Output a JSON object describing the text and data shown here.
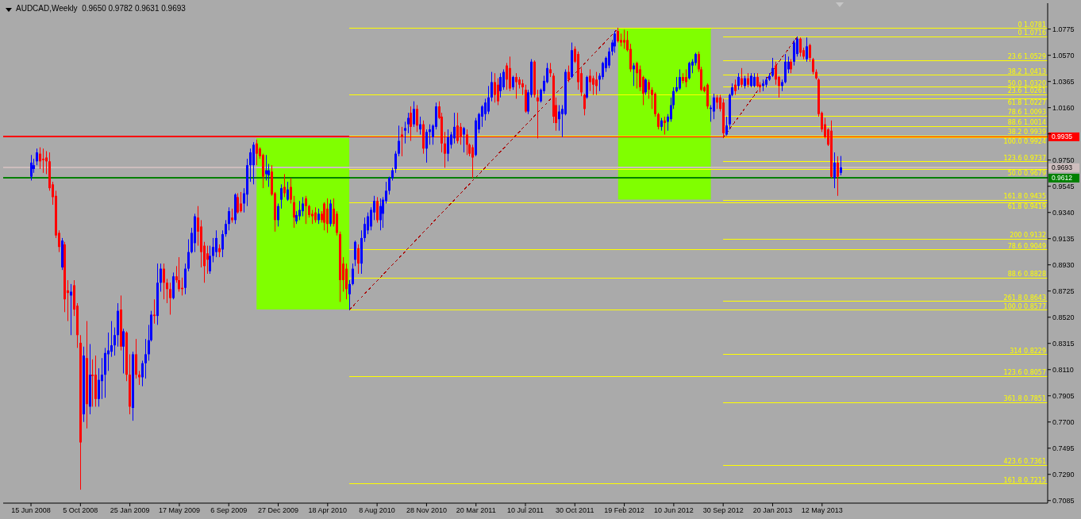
{
  "chart_data": {
    "type": "candlestick",
    "title": "AUDCAD,Weekly  0.9650 0.9782 0.9631 0.9693",
    "x": [
      "2008-06-15",
      "2008-06-22",
      "2008-06-29",
      "2008-07-06",
      "2008-07-13",
      "2008-07-20",
      "2008-07-27",
      "2008-08-03",
      "2008-08-10",
      "2008-08-17",
      "2008-08-24",
      "2008-08-31",
      "2008-09-07",
      "2008-09-14",
      "2008-09-21",
      "2008-09-28",
      "2008-10-05",
      "2008-10-12",
      "2008-10-19",
      "2008-10-26",
      "2008-11-02",
      "2008-11-09",
      "2008-11-16",
      "2008-11-23",
      "2008-11-30",
      "2008-12-07",
      "2008-12-14",
      "2008-12-21",
      "2008-12-28",
      "2009-01-04",
      "2009-01-11",
      "2009-01-18",
      "2009-01-25",
      "2009-02-01",
      "2009-02-08",
      "2009-02-15",
      "2009-02-22",
      "2009-03-01",
      "2009-03-08",
      "2009-03-15",
      "2009-03-22",
      "2009-03-29",
      "2009-04-05",
      "2009-04-12",
      "2009-04-19",
      "2009-04-26",
      "2009-05-03",
      "2009-05-10",
      "2009-05-17",
      "2009-05-24",
      "2009-05-31",
      "2009-06-07",
      "2009-06-14",
      "2009-06-21",
      "2009-06-28",
      "2009-07-05",
      "2009-07-12",
      "2009-07-19",
      "2009-07-26",
      "2009-08-02",
      "2009-08-09",
      "2009-08-16",
      "2009-08-23",
      "2009-08-30",
      "2009-09-06",
      "2009-09-13",
      "2009-09-20",
      "2009-09-27",
      "2009-10-04",
      "2009-10-11",
      "2009-10-18",
      "2009-10-25",
      "2009-11-01",
      "2009-11-08",
      "2009-11-15",
      "2009-11-22",
      "2009-11-29",
      "2009-12-06",
      "2009-12-13",
      "2009-12-20",
      "2009-12-27",
      "2010-01-03",
      "2010-01-10",
      "2010-01-17",
      "2010-01-24",
      "2010-01-31",
      "2010-02-07",
      "2010-02-14",
      "2010-02-21",
      "2010-02-28",
      "2010-03-07",
      "2010-03-14",
      "2010-03-21",
      "2010-03-28",
      "2010-04-04",
      "2010-04-11",
      "2010-04-18",
      "2010-04-25",
      "2010-05-02",
      "2010-05-09",
      "2010-05-16",
      "2010-05-23",
      "2010-05-30",
      "2010-06-06",
      "2010-06-13",
      "2010-06-20",
      "2010-06-27",
      "2010-07-04",
      "2010-07-11",
      "2010-07-18",
      "2010-07-25",
      "2010-08-01",
      "2010-08-08",
      "2010-08-15",
      "2010-08-22",
      "2010-08-29",
      "2010-09-05",
      "2010-09-12",
      "2010-09-19",
      "2010-09-26",
      "2010-10-03",
      "2010-10-10",
      "2010-10-17",
      "2010-10-24",
      "2010-10-31",
      "2010-11-07",
      "2010-11-14",
      "2010-11-21",
      "2010-11-28",
      "2010-12-05",
      "2010-12-12",
      "2010-12-19",
      "2010-12-26",
      "2011-01-02",
      "2011-01-09",
      "2011-01-16",
      "2011-01-23",
      "2011-01-30",
      "2011-02-06",
      "2011-02-13",
      "2011-02-20",
      "2011-02-27",
      "2011-03-06",
      "2011-03-13",
      "2011-03-20",
      "2011-03-27",
      "2011-04-03",
      "2011-04-10",
      "2011-04-17",
      "2011-04-24",
      "2011-05-01",
      "2011-05-08",
      "2011-05-15",
      "2011-05-22",
      "2011-05-29",
      "2011-06-05",
      "2011-06-12",
      "2011-06-19",
      "2011-06-26",
      "2011-07-03",
      "2011-07-10",
      "2011-07-17",
      "2011-07-24",
      "2011-07-31",
      "2011-08-07",
      "2011-08-14",
      "2011-08-21",
      "2011-08-28",
      "2011-09-04",
      "2011-09-11",
      "2011-09-18",
      "2011-09-25",
      "2011-10-02",
      "2011-10-09",
      "2011-10-16",
      "2011-10-23",
      "2011-10-30",
      "2011-11-06",
      "2011-11-13",
      "2011-11-20",
      "2011-11-27",
      "2011-12-04",
      "2011-12-11",
      "2011-12-18",
      "2011-12-25",
      "2012-01-01",
      "2012-01-08",
      "2012-01-15",
      "2012-01-22",
      "2012-01-29",
      "2012-02-05",
      "2012-02-12",
      "2012-02-19",
      "2012-02-26",
      "2012-03-04",
      "2012-03-11",
      "2012-03-18",
      "2012-03-25",
      "2012-04-01",
      "2012-04-08",
      "2012-04-15",
      "2012-04-22",
      "2012-04-29",
      "2012-05-06",
      "2012-05-13",
      "2012-05-20",
      "2012-05-27",
      "2012-06-03",
      "2012-06-10",
      "2012-06-17",
      "2012-06-24",
      "2012-07-01",
      "2012-07-08",
      "2012-07-15",
      "2012-07-22",
      "2012-07-29",
      "2012-08-05",
      "2012-08-12",
      "2012-08-19",
      "2012-08-26",
      "2012-09-02",
      "2012-09-09",
      "2012-09-16",
      "2012-09-23",
      "2012-09-30",
      "2012-10-07",
      "2012-10-14",
      "2012-10-21",
      "2012-10-28",
      "2012-11-04",
      "2012-11-11",
      "2012-11-18",
      "2012-11-25",
      "2012-12-02",
      "2012-12-09",
      "2012-12-16",
      "2012-12-23",
      "2012-12-30",
      "2013-01-06",
      "2013-01-13",
      "2013-01-20",
      "2013-01-27",
      "2013-02-03",
      "2013-02-10",
      "2013-02-17",
      "2013-02-24",
      "2013-03-03",
      "2013-03-10",
      "2013-03-17",
      "2013-03-24",
      "2013-03-31",
      "2013-04-07",
      "2013-04-14",
      "2013-04-21",
      "2013-04-28",
      "2013-05-05",
      "2013-05-12",
      "2013-05-19",
      "2013-05-26",
      "2013-06-02",
      "2013-06-09",
      "2013-06-16",
      "2013-06-23"
    ],
    "ohlc": [
      [
        0.962,
        0.979,
        0.959,
        0.973
      ],
      [
        0.968,
        0.976,
        0.965,
        0.971
      ],
      [
        0.974,
        0.984,
        0.971,
        0.981
      ],
      [
        0.98,
        0.985,
        0.968,
        0.974
      ],
      [
        0.976,
        0.984,
        0.965,
        0.975
      ],
      [
        0.977,
        0.982,
        0.964,
        0.974
      ],
      [
        0.974,
        0.981,
        0.951,
        0.953
      ],
      [
        0.956,
        0.958,
        0.94,
        0.946
      ],
      [
        0.947,
        0.951,
        0.914,
        0.916
      ],
      [
        0.918,
        0.92,
        0.903,
        0.907
      ],
      [
        0.891,
        0.914,
        0.889,
        0.912
      ],
      [
        0.909,
        0.911,
        0.856,
        0.866
      ],
      [
        0.873,
        0.881,
        0.849,
        0.871
      ],
      [
        0.869,
        0.878,
        0.838,
        0.872
      ],
      [
        0.877,
        0.881,
        0.853,
        0.858
      ],
      [
        0.861,
        0.863,
        0.828,
        0.838
      ],
      [
        0.832,
        0.838,
        0.717,
        0.754
      ],
      [
        0.776,
        0.829,
        0.77,
        0.822
      ],
      [
        0.82,
        0.849,
        0.765,
        0.784
      ],
      [
        0.782,
        0.831,
        0.776,
        0.807
      ],
      [
        0.807,
        0.819,
        0.782,
        0.806
      ],
      [
        0.807,
        0.822,
        0.782,
        0.788
      ],
      [
        0.788,
        0.812,
        0.782,
        0.803
      ],
      [
        0.802,
        0.82,
        0.788,
        0.807
      ],
      [
        0.807,
        0.828,
        0.789,
        0.824
      ],
      [
        0.823,
        0.84,
        0.81,
        0.826
      ],
      [
        0.825,
        0.849,
        0.821,
        0.83
      ],
      [
        0.83,
        0.844,
        0.822,
        0.838
      ],
      [
        0.838,
        0.863,
        0.829,
        0.857
      ],
      [
        0.858,
        0.869,
        0.826,
        0.829
      ],
      [
        0.829,
        0.843,
        0.808,
        0.841
      ],
      [
        0.84,
        0.841,
        0.802,
        0.807
      ],
      [
        0.807,
        0.823,
        0.776,
        0.782
      ],
      [
        0.781,
        0.825,
        0.771,
        0.823
      ],
      [
        0.823,
        0.835,
        0.804,
        0.807
      ],
      [
        0.807,
        0.81,
        0.799,
        0.805
      ],
      [
        0.805,
        0.818,
        0.798,
        0.816
      ],
      [
        0.816,
        0.835,
        0.804,
        0.823
      ],
      [
        0.823,
        0.846,
        0.818,
        0.834
      ],
      [
        0.834,
        0.857,
        0.833,
        0.854
      ],
      [
        0.854,
        0.866,
        0.847,
        0.853
      ],
      [
        0.853,
        0.894,
        0.846,
        0.879
      ],
      [
        0.879,
        0.894,
        0.872,
        0.89
      ],
      [
        0.89,
        0.894,
        0.866,
        0.879
      ],
      [
        0.879,
        0.882,
        0.863,
        0.874
      ],
      [
        0.874,
        0.879,
        0.854,
        0.867
      ],
      [
        0.867,
        0.887,
        0.866,
        0.884
      ],
      [
        0.884,
        0.892,
        0.879,
        0.881
      ],
      [
        0.881,
        0.899,
        0.872,
        0.874
      ],
      [
        0.875,
        0.883,
        0.869,
        0.874
      ],
      [
        0.875,
        0.894,
        0.87,
        0.89
      ],
      [
        0.89,
        0.913,
        0.888,
        0.903
      ],
      [
        0.903,
        0.922,
        0.902,
        0.918
      ],
      [
        0.91,
        0.933,
        0.903,
        0.931
      ],
      [
        0.93,
        0.939,
        0.908,
        0.919
      ],
      [
        0.923,
        0.928,
        0.891,
        0.903
      ],
      [
        0.908,
        0.911,
        0.879,
        0.892
      ],
      [
        0.902,
        0.908,
        0.886,
        0.897
      ],
      [
        0.888,
        0.908,
        0.886,
        0.9
      ],
      [
        0.9,
        0.914,
        0.895,
        0.907
      ],
      [
        0.903,
        0.92,
        0.899,
        0.914
      ],
      [
        0.906,
        0.909,
        0.899,
        0.903
      ],
      [
        0.905,
        0.92,
        0.899,
        0.917
      ],
      [
        0.917,
        0.928,
        0.915,
        0.925
      ],
      [
        0.925,
        0.938,
        0.92,
        0.935
      ],
      [
        0.93,
        0.937,
        0.926,
        0.928
      ],
      [
        0.928,
        0.949,
        0.925,
        0.948
      ],
      [
        0.946,
        0.949,
        0.933,
        0.934
      ],
      [
        0.941,
        0.95,
        0.934,
        0.935
      ],
      [
        0.941,
        0.953,
        0.934,
        0.949
      ],
      [
        0.948,
        0.976,
        0.939,
        0.971
      ],
      [
        0.971,
        0.984,
        0.958,
        0.981
      ],
      [
        0.971,
        0.989,
        0.956,
        0.987
      ],
      [
        0.988,
        0.991,
        0.971,
        0.98
      ],
      [
        0.984,
        0.985,
        0.976,
        0.978
      ],
      [
        0.979,
        0.98,
        0.953,
        0.962
      ],
      [
        0.964,
        0.979,
        0.959,
        0.967
      ],
      [
        0.963,
        0.972,
        0.954,
        0.967
      ],
      [
        0.966,
        0.971,
        0.947,
        0.948
      ],
      [
        0.949,
        0.95,
        0.919,
        0.928
      ],
      [
        0.928,
        0.941,
        0.923,
        0.939
      ],
      [
        0.944,
        0.956,
        0.937,
        0.953
      ],
      [
        0.954,
        0.964,
        0.946,
        0.949
      ],
      [
        0.944,
        0.958,
        0.943,
        0.952
      ],
      [
        0.954,
        0.961,
        0.941,
        0.944
      ],
      [
        0.942,
        0.947,
        0.922,
        0.93
      ],
      [
        0.927,
        0.935,
        0.925,
        0.932
      ],
      [
        0.931,
        0.943,
        0.928,
        0.936
      ],
      [
        0.935,
        0.946,
        0.931,
        0.941
      ],
      [
        0.945,
        0.947,
        0.925,
        0.939
      ],
      [
        0.939,
        0.94,
        0.93,
        0.932
      ],
      [
        0.933,
        0.936,
        0.925,
        0.931
      ],
      [
        0.934,
        0.938,
        0.926,
        0.928
      ],
      [
        0.928,
        0.937,
        0.925,
        0.933
      ],
      [
        0.933,
        0.935,
        0.926,
        0.928
      ],
      [
        0.941,
        0.942,
        0.92,
        0.926
      ],
      [
        0.937,
        0.945,
        0.918,
        0.925
      ],
      [
        0.925,
        0.944,
        0.923,
        0.941
      ],
      [
        0.937,
        0.945,
        0.923,
        0.925
      ],
      [
        0.933,
        0.935,
        0.916,
        0.918
      ],
      [
        0.917,
        0.919,
        0.864,
        0.881
      ],
      [
        0.894,
        0.899,
        0.872,
        0.881
      ],
      [
        0.89,
        0.894,
        0.866,
        0.874
      ],
      [
        0.87,
        0.881,
        0.8577,
        0.878
      ],
      [
        0.878,
        0.894,
        0.877,
        0.89
      ],
      [
        0.897,
        0.912,
        0.892,
        0.911
      ],
      [
        0.906,
        0.909,
        0.886,
        0.894
      ],
      [
        0.894,
        0.92,
        0.886,
        0.914
      ],
      [
        0.914,
        0.93,
        0.911,
        0.925
      ],
      [
        0.92,
        0.934,
        0.917,
        0.931
      ],
      [
        0.923,
        0.938,
        0.92,
        0.936
      ],
      [
        0.934,
        0.947,
        0.928,
        0.943
      ],
      [
        0.943,
        0.946,
        0.926,
        0.928
      ],
      [
        0.928,
        0.945,
        0.92,
        0.939
      ],
      [
        0.933,
        0.946,
        0.922,
        0.944
      ],
      [
        0.943,
        0.958,
        0.941,
        0.951
      ],
      [
        0.951,
        0.962,
        0.948,
        0.961
      ],
      [
        0.961,
        0.969,
        0.959,
        0.967
      ],
      [
        0.968,
        0.982,
        0.965,
        0.98
      ],
      [
        0.98,
        1.002,
        0.978,
        0.99
      ],
      [
        0.995,
        1.001,
        0.978,
        0.993
      ],
      [
        0.998,
        1.005,
        0.988,
        1.0
      ],
      [
        1.003,
        1.012,
        0.996,
        1.008
      ],
      [
        1.012,
        1.017,
        0.99,
        1.001
      ],
      [
        1.003,
        1.021,
        1.001,
        1.015
      ],
      [
        1.015,
        1.018,
        0.997,
        1.002
      ],
      [
        0.999,
        1.009,
        0.995,
        1.003
      ],
      [
        1.003,
        1.006,
        0.98,
        0.984
      ],
      [
        0.984,
        0.999,
        0.973,
        0.997
      ],
      [
        0.997,
        1.003,
        0.987,
        0.999
      ],
      [
        0.993,
        1.003,
        0.987,
        1.002
      ],
      [
        1.001,
        1.02,
        0.999,
        1.017
      ],
      [
        1.017,
        1.021,
        1.007,
        1.008
      ],
      [
        1.009,
        1.012,
        0.981,
        0.988
      ],
      [
        0.988,
        0.997,
        0.969,
        0.98
      ],
      [
        0.98,
        0.999,
        0.974,
        0.993
      ],
      [
        0.987,
        0.997,
        0.984,
        0.995
      ],
      [
        0.992,
        1.012,
        0.988,
        1.001
      ],
      [
        1.002,
        1.012,
        0.988,
        0.99
      ],
      [
        1.001,
        1.004,
        0.987,
        0.993
      ],
      [
        0.995,
        1.001,
        0.981,
        1.0
      ],
      [
        0.995,
        0.999,
        0.979,
        0.987
      ],
      [
        0.987,
        0.988,
        0.978,
        0.98
      ],
      [
        0.985,
        0.987,
        0.961,
        0.977
      ],
      [
        0.979,
        1.008,
        0.978,
        1.006
      ],
      [
        0.999,
        1.012,
        0.996,
        1.011
      ],
      [
        1.009,
        1.018,
        1.001,
        1.017
      ],
      [
        1.011,
        1.023,
        1.006,
        1.02
      ],
      [
        1.013,
        1.033,
        1.011,
        1.024
      ],
      [
        1.024,
        1.044,
        1.021,
        1.036
      ],
      [
        1.036,
        1.043,
        1.02,
        1.026
      ],
      [
        1.034,
        1.039,
        1.018,
        1.021
      ],
      [
        1.029,
        1.043,
        1.024,
        1.04
      ],
      [
        1.032,
        1.046,
        1.03,
        1.044
      ],
      [
        1.049,
        1.051,
        1.03,
        1.038
      ],
      [
        1.047,
        1.056,
        1.029,
        1.031
      ],
      [
        1.032,
        1.041,
        1.03,
        1.04
      ],
      [
        1.04,
        1.043,
        1.023,
        1.036
      ],
      [
        1.038,
        1.04,
        1.031,
        1.034
      ],
      [
        1.035,
        1.038,
        1.026,
        1.032
      ],
      [
        1.03,
        1.034,
        1.012,
        1.013
      ],
      [
        1.013,
        1.03,
        1.011,
        1.028
      ],
      [
        1.026,
        1.054,
        1.024,
        1.052
      ],
      [
        1.052,
        1.053,
        1.024,
        1.026
      ],
      [
        1.024,
        1.03,
        0.992,
        1.021
      ],
      [
        1.021,
        1.031,
        1.02,
        1.03
      ],
      [
        1.029,
        1.041,
        1.027,
        1.037
      ],
      [
        1.036,
        1.051,
        1.035,
        1.047
      ],
      [
        1.046,
        1.051,
        1.04,
        1.043
      ],
      [
        1.041,
        1.043,
        1.004,
        1.009
      ],
      [
        1.018,
        1.024,
        0.998,
        1.004
      ],
      [
        1.007,
        1.018,
        0.998,
        1.013
      ],
      [
        1.011,
        1.018,
        0.993,
        1.015
      ],
      [
        1.011,
        1.046,
        1.01,
        1.044
      ],
      [
        1.044,
        1.049,
        1.036,
        1.038
      ],
      [
        1.04,
        1.067,
        1.039,
        1.061
      ],
      [
        1.062,
        1.064,
        1.051,
        1.052
      ],
      [
        1.058,
        1.06,
        1.03,
        1.036
      ],
      [
        1.043,
        1.047,
        1.025,
        1.028
      ],
      [
        1.026,
        1.027,
        1.01,
        1.015
      ],
      [
        1.024,
        1.041,
        1.023,
        1.04
      ],
      [
        1.041,
        1.046,
        1.029,
        1.036
      ],
      [
        1.039,
        1.041,
        1.026,
        1.034
      ],
      [
        1.038,
        1.044,
        1.026,
        1.033
      ],
      [
        1.038,
        1.043,
        1.029,
        1.041
      ],
      [
        1.04,
        1.052,
        1.038,
        1.051
      ],
      [
        1.047,
        1.056,
        1.044,
        1.055
      ],
      [
        1.049,
        1.063,
        1.047,
        1.06
      ],
      [
        1.06,
        1.069,
        1.057,
        1.067
      ],
      [
        1.064,
        1.076,
        1.059,
        1.074
      ],
      [
        1.076,
        1.0781,
        1.067,
        1.068
      ],
      [
        1.069,
        1.074,
        1.064,
        1.067
      ],
      [
        1.069,
        1.077,
        1.062,
        1.067
      ],
      [
        1.069,
        1.076,
        1.06,
        1.061
      ],
      [
        1.062,
        1.066,
        1.044,
        1.046
      ],
      [
        1.046,
        1.051,
        1.033,
        1.049
      ],
      [
        1.051,
        1.052,
        1.031,
        1.043
      ],
      [
        1.046,
        1.049,
        1.029,
        1.032
      ],
      [
        1.04,
        1.041,
        1.018,
        1.027
      ],
      [
        1.028,
        1.039,
        1.026,
        1.038
      ],
      [
        1.036,
        1.038,
        1.023,
        1.03
      ],
      [
        1.03,
        1.032,
        1.015,
        1.026
      ],
      [
        1.027,
        1.028,
        1.009,
        1.011
      ],
      [
        1.011,
        1.012,
        0.999,
        1.001
      ],
      [
        1.001,
        1.008,
        0.998,
        1.006
      ],
      [
        1.006,
        1.009,
        0.995,
        1.004
      ],
      [
        1.005,
        1.011,
        0.998,
        1.009
      ],
      [
        1.007,
        1.024,
        1.005,
        1.018
      ],
      [
        1.018,
        1.032,
        1.015,
        1.029
      ],
      [
        1.029,
        1.04,
        1.028,
        1.032
      ],
      [
        1.031,
        1.046,
        1.03,
        1.04
      ],
      [
        1.04,
        1.043,
        1.035,
        1.037
      ],
      [
        1.04,
        1.046,
        1.032,
        1.036
      ],
      [
        1.039,
        1.052,
        1.038,
        1.051
      ],
      [
        1.049,
        1.054,
        1.043,
        1.052
      ],
      [
        1.051,
        1.059,
        1.049,
        1.058
      ],
      [
        1.058,
        1.06,
        1.044,
        1.046
      ],
      [
        1.046,
        1.048,
        1.029,
        1.03
      ],
      [
        1.032,
        1.033,
        1.028,
        1.029
      ],
      [
        1.034,
        1.035,
        1.015,
        1.017
      ],
      [
        1.015,
        1.018,
        1.005,
        1.016
      ],
      [
        1.013,
        1.027,
        1.007,
        1.024
      ],
      [
        1.024,
        1.026,
        1.015,
        1.02
      ],
      [
        1.024,
        1.026,
        1.013,
        1.015
      ],
      [
        1.02,
        1.023,
        0.9924,
        0.996
      ],
      [
        0.995,
        1.009,
        0.994,
        1.002
      ],
      [
        1.003,
        1.027,
        0.999,
        1.026
      ],
      [
        1.026,
        1.035,
        1.025,
        1.032
      ],
      [
        1.034,
        1.038,
        1.026,
        1.029
      ],
      [
        1.033,
        1.043,
        1.03,
        1.04
      ],
      [
        1.039,
        1.047,
        1.032,
        1.034
      ],
      [
        1.033,
        1.041,
        1.031,
        1.039
      ],
      [
        1.039,
        1.043,
        1.032,
        1.034
      ],
      [
        1.033,
        1.043,
        1.032,
        1.041
      ],
      [
        1.033,
        1.043,
        1.032,
        1.04
      ],
      [
        1.04,
        1.043,
        1.032,
        1.033
      ],
      [
        1.034,
        1.036,
        1.028,
        1.032
      ],
      [
        1.033,
        1.038,
        1.029,
        1.035
      ],
      [
        1.034,
        1.04,
        1.032,
        1.038
      ],
      [
        1.038,
        1.043,
        1.037,
        1.041
      ],
      [
        1.041,
        1.055,
        1.04,
        1.047
      ],
      [
        1.049,
        1.052,
        1.034,
        1.038
      ],
      [
        1.04,
        1.041,
        1.024,
        1.033
      ],
      [
        1.033,
        1.038,
        1.029,
        1.036
      ],
      [
        1.036,
        1.058,
        1.035,
        1.052
      ],
      [
        1.046,
        1.056,
        1.043,
        1.052
      ],
      [
        1.052,
        1.054,
        1.043,
        1.046
      ],
      [
        1.052,
        1.069,
        1.049,
        1.067
      ],
      [
        1.058,
        1.0716,
        1.056,
        1.07
      ],
      [
        1.07,
        1.071,
        1.056,
        1.059
      ],
      [
        1.061,
        1.063,
        1.054,
        1.056
      ],
      [
        1.054,
        1.071,
        1.052,
        1.064
      ],
      [
        1.065,
        1.066,
        1.052,
        1.055
      ],
      [
        1.054,
        1.055,
        1.042,
        1.044
      ],
      [
        1.044,
        1.046,
        1.038,
        1.039
      ],
      [
        1.038,
        1.039,
        1.009,
        1.011
      ],
      [
        1.012,
        1.013,
        0.997,
        0.999
      ],
      [
        1.003,
        1.008,
        0.992,
        0.993
      ],
      [
        0.999,
        1.0,
        0.986,
        0.987
      ],
      [
        0.998,
        1.006,
        0.961,
        0.962
      ],
      [
        0.961,
        0.981,
        0.953,
        0.973
      ],
      [
        0.973,
        0.978,
        0.947,
        0.962
      ],
      [
        0.965,
        0.9782,
        0.9631,
        0.9693
      ]
    ],
    "colors": [
      "#0000ff",
      "#0000ff",
      "#0000ff",
      "#ff0000",
      "#ff0000",
      "#ff0000",
      "#ff0000",
      "#ff0000",
      "#ff0000",
      "#ff0000",
      "#0000ff",
      "#ff0000",
      "#ff0000",
      "#0000ff",
      "#ff0000",
      "#ff0000",
      "#ff0000",
      "#0000ff",
      "#ff0000",
      "#0000ff",
      "#ff0000",
      "#ff0000",
      "#0000ff",
      "#0000ff",
      "#0000ff",
      "#0000ff",
      "#0000ff",
      "#0000ff",
      "#0000ff",
      "#ff0000",
      "#0000ff",
      "#ff0000",
      "#ff0000",
      "#0000ff",
      "#ff0000",
      "#ff0000",
      "#0000ff",
      "#0000ff",
      "#0000ff",
      "#0000ff",
      "#ff0000",
      "#0000ff",
      "#0000ff",
      "#ff0000",
      "#ff0000",
      "#ff0000",
      "#0000ff",
      "#ff0000",
      "#ff0000",
      "#ff0000",
      "#0000ff",
      "#0000ff",
      "#0000ff",
      "#0000ff",
      "#ff0000",
      "#ff0000",
      "#ff0000",
      "#ff0000",
      "#0000ff",
      "#0000ff",
      "#0000ff",
      "#ff0000",
      "#0000ff",
      "#0000ff",
      "#0000ff",
      "#ff0000",
      "#0000ff",
      "#ff0000",
      "#ff0000",
      "#0000ff",
      "#0000ff",
      "#0000ff",
      "#0000ff",
      "#ff0000",
      "#ff0000",
      "#ff0000",
      "#0000ff",
      "#0000ff",
      "#ff0000",
      "#ff0000",
      "#0000ff",
      "#0000ff",
      "#ff0000",
      "#0000ff",
      "#ff0000",
      "#ff0000",
      "#0000ff",
      "#0000ff",
      "#0000ff",
      "#ff0000",
      "#ff0000",
      "#ff0000",
      "#ff0000",
      "#0000ff",
      "#ff0000",
      "#ff0000",
      "#ff0000",
      "#0000ff",
      "#ff0000",
      "#ff0000",
      "#ff0000",
      "#ff0000",
      "#ff0000",
      "#0000ff",
      "#0000ff",
      "#0000ff",
      "#ff0000",
      "#0000ff",
      "#0000ff",
      "#0000ff",
      "#0000ff",
      "#0000ff",
      "#ff0000",
      "#0000ff",
      "#0000ff",
      "#0000ff",
      "#0000ff",
      "#0000ff",
      "#0000ff",
      "#0000ff",
      "#ff0000",
      "#0000ff",
      "#0000ff",
      "#ff0000",
      "#0000ff",
      "#ff0000",
      "#0000ff",
      "#ff0000",
      "#0000ff",
      "#0000ff",
      "#0000ff",
      "#0000ff",
      "#ff0000",
      "#ff0000",
      "#ff0000",
      "#0000ff",
      "#0000ff",
      "#0000ff",
      "#ff0000",
      "#ff0000",
      "#0000ff",
      "#ff0000",
      "#ff0000",
      "#ff0000",
      "#0000ff",
      "#0000ff",
      "#0000ff",
      "#0000ff",
      "#0000ff",
      "#0000ff",
      "#ff0000",
      "#ff0000",
      "#0000ff",
      "#0000ff",
      "#ff0000",
      "#ff0000",
      "#0000ff",
      "#ff0000",
      "#ff0000",
      "#ff0000",
      "#ff0000",
      "#0000ff",
      "#0000ff",
      "#ff0000",
      "#ff0000",
      "#0000ff",
      "#0000ff",
      "#0000ff",
      "#ff0000",
      "#ff0000",
      "#ff0000",
      "#0000ff",
      "#0000ff",
      "#0000ff",
      "#ff0000",
      "#0000ff",
      "#ff0000",
      "#ff0000",
      "#ff0000",
      "#ff0000",
      "#0000ff",
      "#ff0000",
      "#ff0000",
      "#ff0000",
      "#0000ff",
      "#0000ff",
      "#0000ff",
      "#0000ff",
      "#0000ff",
      "#0000ff",
      "#ff0000",
      "#ff0000",
      "#ff0000",
      "#ff0000",
      "#ff0000",
      "#0000ff",
      "#ff0000",
      "#ff0000",
      "#ff0000",
      "#0000ff",
      "#ff0000",
      "#ff0000",
      "#ff0000",
      "#ff0000",
      "#0000ff",
      "#ff0000",
      "#0000ff",
      "#0000ff",
      "#0000ff",
      "#0000ff",
      "#0000ff",
      "#ff0000",
      "#ff0000",
      "#0000ff",
      "#0000ff",
      "#0000ff",
      "#ff0000",
      "#ff0000",
      "#ff0000",
      "#ff0000",
      "#0000ff",
      "#0000ff",
      "#ff0000",
      "#ff0000",
      "#ff0000",
      "#0000ff",
      "#0000ff",
      "#0000ff",
      "#ff0000",
      "#0000ff",
      "#ff0000",
      "#0000ff",
      "#ff0000",
      "#0000ff",
      "#0000ff",
      "#ff0000",
      "#ff0000",
      "#0000ff",
      "#0000ff",
      "#0000ff",
      "#0000ff",
      "#ff0000",
      "#ff0000",
      "#0000ff",
      "#0000ff",
      "#0000ff",
      "#ff0000",
      "#0000ff",
      "#0000ff",
      "#ff0000",
      "#ff0000",
      "#0000ff",
      "#ff0000",
      "#ff0000",
      "#ff0000",
      "#ff0000",
      "#ff0000",
      "#ff0000",
      "#ff0000",
      "#ff0000",
      "#0000ff",
      "#ff0000",
      "#0000ff"
    ],
    "xlim": [
      "2008-04-13",
      "2014-10-05"
    ],
    "xticks": [
      {
        "value": "2008-06-15",
        "label": "15 Jun 2008"
      },
      {
        "value": "2008-10-05",
        "label": "5 Oct 2008"
      },
      {
        "value": "2009-01-25",
        "label": "25 Jan 2009"
      },
      {
        "value": "2009-05-17",
        "label": "17 May 2009"
      },
      {
        "value": "2009-09-06",
        "label": "6 Sep 2009"
      },
      {
        "value": "2009-12-27",
        "label": "27 Dec 2009"
      },
      {
        "value": "2010-04-18",
        "label": "18 Apr 2010"
      },
      {
        "value": "2010-08-08",
        "label": "8 Aug 2010"
      },
      {
        "value": "2010-11-28",
        "label": "28 Nov 2010"
      },
      {
        "value": "2011-03-20",
        "label": "20 Mar 2011"
      },
      {
        "value": "2011-07-10",
        "label": "10 Jul 2011"
      },
      {
        "value": "2011-10-30",
        "label": "30 Oct 2011"
      },
      {
        "value": "2012-02-19",
        "label": "19 Feb 2012"
      },
      {
        "value": "2012-06-10",
        "label": "10 Jun 2012"
      },
      {
        "value": "2012-09-30",
        "label": "30 Sep 2012"
      },
      {
        "value": "2013-01-20",
        "label": "20 Jan 2013"
      },
      {
        "value": "2013-05-12",
        "label": "12 May 2013"
      }
    ],
    "ylim": [
      0.7065,
      1.0978
    ],
    "yticks": [
      1.0775,
      {
        "value": 1.057,
        "label": "1.0570"
      },
      1.0365,
      {
        "value": 1.016,
        "label": "1.0160"
      },
      {
        "value": 0.9955,
        "label": null
      },
      {
        "value": 0.975,
        "label": "0.9750"
      },
      0.9545,
      {
        "value": 0.934,
        "label": "0.9340"
      },
      0.9135,
      {
        "value": 0.893,
        "label": "0.8930"
      },
      0.8725,
      {
        "value": 0.852,
        "label": "0.8520"
      },
      0.8315,
      {
        "value": 0.811,
        "label": "0.8110"
      },
      0.7905,
      {
        "value": 0.77,
        "label": "0.7700"
      },
      0.7495,
      {
        "value": 0.729,
        "label": "0.7290"
      },
      0.7085
    ],
    "series": [
      {
        "type": "line",
        "color": "#80ff00",
        "x": [
          "2009-11-08",
          "2010-06-06"
        ],
        "values": [
          0.992,
          0.992
        ],
        "lower": [
          0.858,
          0.858
        ],
        "upper": [
          0.992,
          0.992
        ]
      },
      {
        "type": "line",
        "color": "#80ff00",
        "x": [
          "2012-02-05",
          "2012-09-02"
        ],
        "values": [
          1.0775,
          1.0775
        ],
        "lower": [
          0.944,
          0.944
        ],
        "upper": [
          1.0775,
          1.0775
        ]
      },
      {
        "type": "line",
        "name": "0 1.0781",
        "color": "#ffff00",
        "x": [
          "2010-06-06",
          "2014-10-05"
        ],
        "values": [
          1.0781,
          1.0781
        ]
      },
      {
        "type": "line",
        "name": "23.6 1.0261",
        "color": "#ffff00",
        "x": [
          "2010-06-06",
          "2014-10-05"
        ],
        "values": [
          1.0261,
          1.0261
        ]
      },
      {
        "type": "line",
        "name": "38.2 0.9939",
        "color": "#ffff00",
        "x": [
          "2010-06-06",
          "2014-10-05"
        ],
        "values": [
          0.9939,
          0.9939
        ]
      },
      {
        "type": "line",
        "name": "50.0 0.9679",
        "color": "#ffff00",
        "x": [
          "2010-06-06",
          "2014-10-05"
        ],
        "values": [
          0.9679,
          0.9679
        ]
      },
      {
        "type": "line",
        "name": "61.8 0.9419",
        "color": "#ffff00",
        "x": [
          "2010-06-06",
          "2014-10-05"
        ],
        "values": [
          0.9419,
          0.9419
        ]
      },
      {
        "type": "line",
        "name": "78.6 0.9049",
        "color": "#ffff00",
        "x": [
          "2010-06-06",
          "2014-10-05"
        ],
        "values": [
          0.9049,
          0.9049
        ]
      },
      {
        "type": "line",
        "name": "88.6 0.8828",
        "color": "#ffff00",
        "x": [
          "2010-06-06",
          "2014-10-05"
        ],
        "values": [
          0.8828,
          0.8828
        ]
      },
      {
        "type": "line",
        "name": "100.0 0.8577",
        "color": "#ffff00",
        "x": [
          "2010-06-06",
          "2014-10-05"
        ],
        "values": [
          0.8577,
          0.8577
        ]
      },
      {
        "type": "line",
        "name": "123.6 0.8057",
        "color": "#ffff00",
        "x": [
          "2010-06-06",
          "2014-10-05"
        ],
        "values": [
          0.8057,
          0.8057
        ]
      },
      {
        "type": "line",
        "name": "161.8 0.7215",
        "color": "#ffff00",
        "x": [
          "2010-06-06",
          "2014-10-05"
        ],
        "values": [
          0.7215,
          0.7215
        ]
      },
      {
        "type": "line",
        "name": "0 1.0716",
        "color": "#ffff00",
        "x": [
          "2012-09-30",
          "2014-10-05"
        ],
        "values": [
          1.0716,
          1.0716
        ]
      },
      {
        "type": "line",
        "name": "23.6 1.0529",
        "color": "#ffff00",
        "x": [
          "2012-09-30",
          "2014-10-05"
        ],
        "values": [
          1.0529,
          1.0529
        ]
      },
      {
        "type": "line",
        "name": "38.2 1.0413",
        "color": "#ffff00",
        "x": [
          "2012-09-30",
          "2014-10-05"
        ],
        "values": [
          1.0413,
          1.0413
        ]
      },
      {
        "type": "line",
        "name": "50.0 1.0320",
        "color": "#ffff00",
        "x": [
          "2012-09-30",
          "2014-10-05"
        ],
        "values": [
          1.032,
          1.032
        ]
      },
      {
        "type": "line",
        "name": "61.8 1.0227",
        "color": "#ffff00",
        "x": [
          "2012-09-30",
          "2014-10-05"
        ],
        "values": [
          1.0227,
          1.0227
        ]
      },
      {
        "type": "line",
        "name": "78.6 1.0093",
        "color": "#ffff00",
        "x": [
          "2012-09-30",
          "2014-10-05"
        ],
        "values": [
          1.0093,
          1.0093
        ]
      },
      {
        "type": "line",
        "name": "88.6 1.0014",
        "color": "#ffff00",
        "x": [
          "2012-09-30",
          "2014-10-05"
        ],
        "values": [
          1.0014,
          1.0014
        ]
      },
      {
        "type": "line",
        "name": "100.0 0.9924",
        "color": "#ffff00",
        "x": [
          "2012-09-30",
          "2014-10-05"
        ],
        "values": [
          0.9924,
          0.9924
        ]
      },
      {
        "type": "line",
        "name": "123.6 0.9737",
        "color": "#ffff00",
        "x": [
          "2012-09-30",
          "2014-10-05"
        ],
        "values": [
          0.9737,
          0.9737
        ]
      },
      {
        "type": "line",
        "name": "161.8 0.9435",
        "color": "#ffff00",
        "x": [
          "2012-09-30",
          "2014-10-05"
        ],
        "values": [
          0.9435,
          0.9435
        ]
      },
      {
        "type": "line",
        "name": "200 0.9132",
        "color": "#ffff00",
        "x": [
          "2012-09-30",
          "2014-10-05"
        ],
        "values": [
          0.9132,
          0.9132
        ]
      },
      {
        "type": "line",
        "name": "261.8 0.8643",
        "color": "#ffff00",
        "x": [
          "2012-09-30",
          "2014-10-05"
        ],
        "values": [
          0.8643,
          0.8643
        ]
      },
      {
        "type": "line",
        "name": "314 0.8229",
        "color": "#ffff00",
        "x": [
          "2012-09-30",
          "2014-10-05"
        ],
        "values": [
          0.8229,
          0.8229
        ]
      },
      {
        "type": "line",
        "name": "361.8 0.7851",
        "color": "#ffff00",
        "x": [
          "2012-09-30",
          "2014-10-05"
        ],
        "values": [
          0.7851,
          0.7851
        ]
      },
      {
        "type": "line",
        "name": "423.6 0.7361",
        "color": "#ffff00",
        "x": [
          "2012-09-30",
          "2014-10-05"
        ],
        "values": [
          0.7361,
          0.7361
        ]
      },
      {
        "type": "line",
        "color": "#aa0000",
        "line_style": "dashed",
        "x": [
          "2010-06-06",
          "2012-02-05"
        ],
        "values": [
          0.8577,
          1.0781
        ]
      },
      {
        "type": "line",
        "color": "#aa0000",
        "line_style": "dashed",
        "x": [
          "2012-09-30",
          "2013-03-17"
        ],
        "values": [
          0.9924,
          1.0716
        ]
      }
    ],
    "ref_lines": [
      {
        "axis": "y",
        "value": 0.9935,
        "label": "0.9935",
        "color": "#ff0000"
      },
      {
        "axis": "y",
        "value": 0.9612,
        "label": "0.9612",
        "color": "#008000"
      },
      {
        "axis": "y",
        "value": 0.9693,
        "label": "0.9693",
        "color": "#cdbdbd"
      }
    ]
  }
}
